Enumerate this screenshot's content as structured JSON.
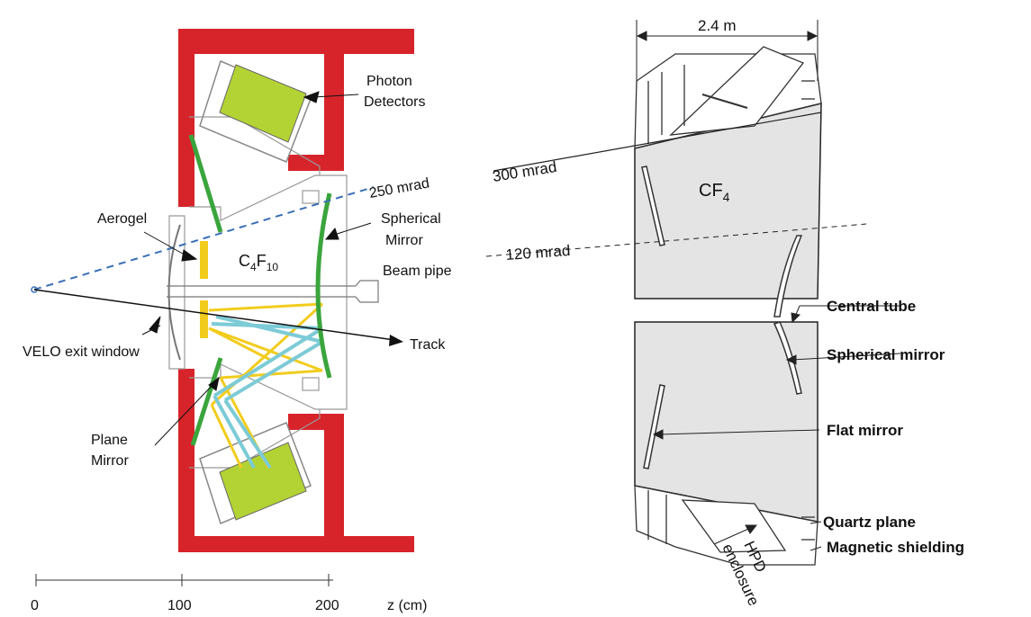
{
  "left": {
    "labels": {
      "photon_detectors_1": "Photon",
      "photon_detectors_2": "Detectors",
      "angle_250": "250 mrad",
      "spherical_mirror_1": "Spherical",
      "spherical_mirror_2": "Mirror",
      "aerogel": "Aerogel",
      "radiator_c": "C",
      "radiator_sub1": "4",
      "radiator_f": "F",
      "radiator_sub2": "10",
      "beam_pipe": "Beam pipe",
      "track": "Track",
      "velo_exit_window": "VELO exit window",
      "plane_mirror_1": "Plane",
      "plane_mirror_2": "Mirror"
    },
    "axis": {
      "ticks": [
        "0",
        "100",
        "200"
      ],
      "label": "z  (cm)"
    },
    "colors": {
      "support_structure": "#d7242b",
      "photon_detector_fill": "#b3d334",
      "mirror": "#3aa53c",
      "aerogel": "#f2cc1d",
      "cherenkov_yellow": "#f2cc1d",
      "cherenkov_cyan": "#7ccbd6",
      "acceptance_line": "#3a6fb5"
    }
  },
  "right": {
    "labels": {
      "width": "2.4 m",
      "angle_300": "300 mrad",
      "radiator_c": "CF",
      "radiator_sub": "4",
      "angle_120": "120 mrad",
      "central_tube": "Central tube",
      "spherical_mirror": "Spherical mirror",
      "flat_mirror": "Flat mirror",
      "quartz_plane": "Quartz plane",
      "magnetic_shielding": "Magnetic shielding",
      "hpd_1": "HPD",
      "hpd_2": "enclosure"
    },
    "colors": {
      "gas_volume": "#e4e4e4",
      "outline": "#222222"
    }
  }
}
